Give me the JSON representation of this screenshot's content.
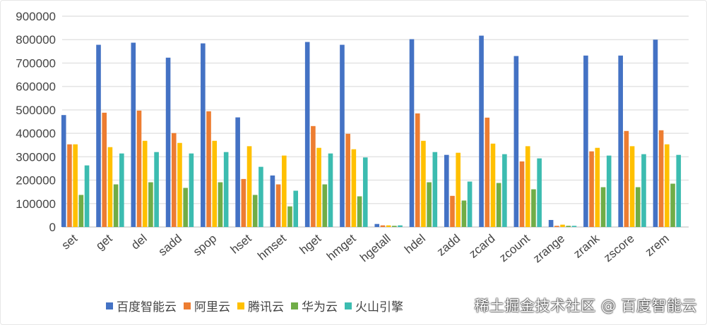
{
  "chart_data": {
    "type": "bar",
    "title": "",
    "xlabel": "",
    "ylabel": "",
    "ylim": [
      0,
      900000
    ],
    "yticks": [
      "0",
      "100000",
      "200000",
      "300000",
      "400000",
      "500000",
      "600000",
      "700000",
      "800000",
      "900000"
    ],
    "grid": true,
    "legend_position": "bottom-right",
    "categories": [
      "set",
      "get",
      "del",
      "sadd",
      "spop",
      "hset",
      "hmset",
      "hget",
      "hmget",
      "hgetall",
      "hdel",
      "zadd",
      "zcard",
      "zcount",
      "zrange",
      "zrank",
      "zscore",
      "zrem"
    ],
    "series": [
      {
        "name": "百度智能云",
        "color": "#4472C4",
        "values": [
          478000,
          778000,
          787000,
          723000,
          784000,
          468000,
          220000,
          790000,
          778000,
          13000,
          802000,
          308000,
          817000,
          730000,
          30000,
          732000,
          732000,
          800000
        ]
      },
      {
        "name": "阿里云",
        "color": "#ED7D31",
        "values": [
          353000,
          488000,
          497000,
          401000,
          494000,
          205000,
          182000,
          431000,
          398000,
          7000,
          485000,
          133000,
          467000,
          280000,
          5000,
          323000,
          410000,
          413000
        ]
      },
      {
        "name": "腾讯云",
        "color": "#FFC000",
        "values": [
          353000,
          341000,
          368000,
          359000,
          368000,
          345000,
          305000,
          338000,
          332000,
          7000,
          368000,
          317000,
          356000,
          345000,
          10000,
          338000,
          345000,
          353000
        ]
      },
      {
        "name": "华为云",
        "color": "#70AD47",
        "values": [
          137000,
          182000,
          191000,
          167000,
          191000,
          137000,
          88000,
          182000,
          131000,
          5000,
          191000,
          113000,
          188000,
          161000,
          5000,
          170000,
          170000,
          185000
        ]
      },
      {
        "name": "火山引擎",
        "color": "#3CBCB0",
        "values": [
          263000,
          314000,
          320000,
          314000,
          320000,
          257000,
          155000,
          314000,
          297000,
          7000,
          320000,
          194000,
          311000,
          293000,
          5000,
          305000,
          311000,
          308000
        ]
      }
    ]
  },
  "watermark": "稀土掘金技术社区 @ 百度智能云"
}
